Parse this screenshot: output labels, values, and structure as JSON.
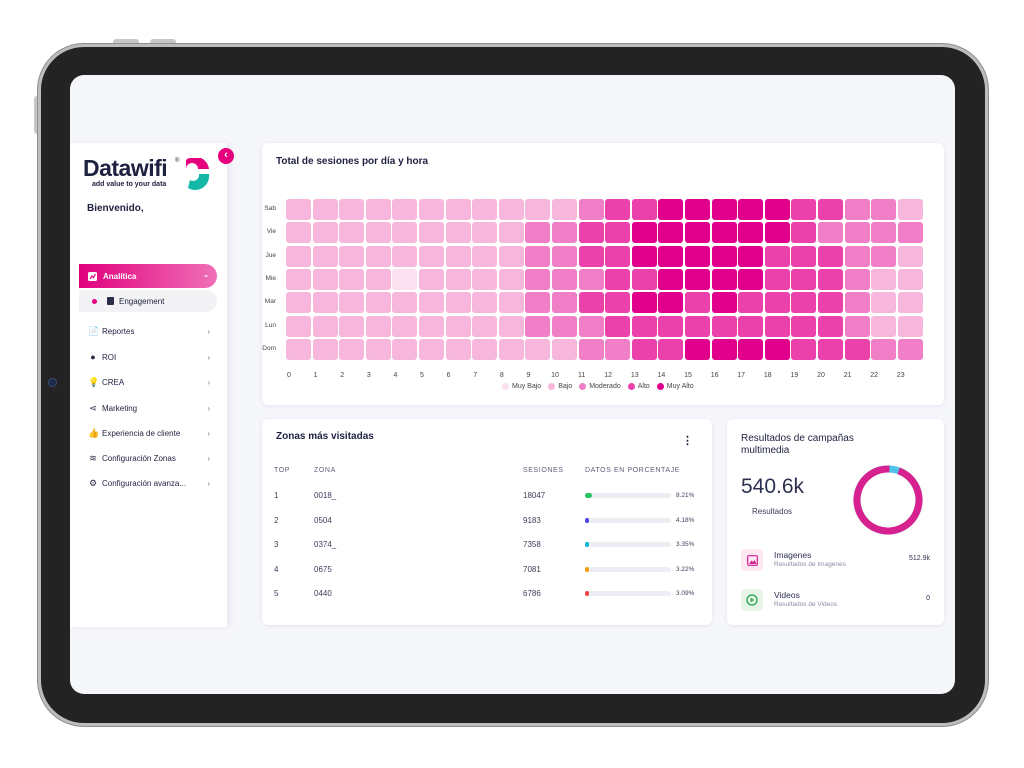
{
  "brand": {
    "name": "Datawifi",
    "reg": "®",
    "tagline": "add value to your data",
    "accent": "#e6007e",
    "teal": "#14b8a6"
  },
  "sidebar": {
    "welcome": "Bienvenido,",
    "collapse_glyph": "‹",
    "active": {
      "label": "Analítica",
      "chevron": "⌄"
    },
    "sub": {
      "label": "Engagement"
    },
    "items": [
      {
        "label": "Reportes",
        "icon": "📄",
        "chevron": "›"
      },
      {
        "label": "ROI",
        "icon": "●",
        "chevron": "›"
      },
      {
        "label": "CREA",
        "icon": "💡",
        "chevron": "›"
      },
      {
        "label": "Marketing",
        "icon": "⋖",
        "chevron": "›"
      },
      {
        "label": "Experiencia de cliente",
        "icon": "👍",
        "chevron": "›"
      },
      {
        "label": "Configuración Zonas",
        "icon": "≋",
        "chevron": "›"
      },
      {
        "label": "Configuración avanza...",
        "icon": "⚙",
        "chevron": "›"
      }
    ]
  },
  "heatmap": {
    "title": "Total de sesiones por día y hora",
    "chart_data": {
      "type": "heatmap",
      "title": "Total de sesiones por día y hora",
      "y_categories": [
        "Sab",
        "Vie",
        "Jue",
        "Mie",
        "Mar",
        "Lun",
        "Dom"
      ],
      "x_categories": [
        "0",
        "1",
        "2",
        "3",
        "4",
        "5",
        "6",
        "7",
        "8",
        "9",
        "10",
        "11",
        "12",
        "13",
        "14",
        "15",
        "16",
        "17",
        "18",
        "19",
        "20",
        "21",
        "22",
        "23"
      ],
      "levels": [
        "Muy Bajo",
        "Bajo",
        "Moderado",
        "Alto",
        "Muy Alto"
      ],
      "level_colors": [
        "#fbe1ef",
        "#f7b7dd",
        "#f07fc7",
        "#ea41ab",
        "#e0008c"
      ],
      "values": [
        [
          1,
          1,
          1,
          1,
          1,
          1,
          1,
          1,
          1,
          1,
          1,
          2,
          3,
          3,
          4,
          4,
          4,
          4,
          4,
          3,
          3,
          2,
          2,
          1
        ],
        [
          1,
          1,
          1,
          1,
          1,
          1,
          1,
          1,
          1,
          2,
          2,
          3,
          3,
          4,
          4,
          4,
          4,
          4,
          4,
          3,
          2,
          2,
          2,
          2
        ],
        [
          1,
          1,
          1,
          1,
          1,
          1,
          1,
          1,
          1,
          2,
          2,
          3,
          3,
          4,
          4,
          4,
          4,
          4,
          3,
          3,
          3,
          2,
          2,
          1
        ],
        [
          1,
          1,
          1,
          1,
          0,
          1,
          1,
          1,
          1,
          2,
          2,
          2,
          3,
          3,
          4,
          4,
          4,
          4,
          3,
          3,
          3,
          2,
          1,
          1
        ],
        [
          1,
          1,
          1,
          1,
          1,
          1,
          1,
          1,
          1,
          2,
          2,
          3,
          3,
          4,
          4,
          3,
          4,
          3,
          3,
          3,
          3,
          2,
          1,
          1
        ],
        [
          1,
          1,
          1,
          1,
          1,
          1,
          1,
          1,
          1,
          2,
          2,
          2,
          3,
          3,
          3,
          3,
          3,
          3,
          3,
          3,
          3,
          2,
          1,
          1
        ],
        [
          1,
          1,
          1,
          1,
          1,
          1,
          1,
          1,
          1,
          1,
          1,
          2,
          2,
          3,
          3,
          4,
          4,
          4,
          4,
          3,
          3,
          3,
          2,
          2
        ]
      ]
    }
  },
  "zones": {
    "title": "Zonas más visitadas",
    "menu_glyph": "⋮",
    "headers": {
      "top": "TOP",
      "zona": "ZONA",
      "sesiones": "SESIONES",
      "datos": "DATOS EN PORCENTAJE"
    },
    "rows": [
      {
        "top": "1",
        "zona": "0018_",
        "sesiones": "18047",
        "pct": "8.21%",
        "fraction": 0.0821,
        "color": "#22c55e"
      },
      {
        "top": "2",
        "zona": "0504",
        "sesiones": "9183",
        "pct": "4.18%",
        "fraction": 0.0418,
        "color": "#4f46e5"
      },
      {
        "top": "3",
        "zona": "0374_",
        "sesiones": "7358",
        "pct": "3.35%",
        "fraction": 0.0335,
        "color": "#06b6d4"
      },
      {
        "top": "4",
        "zona": "0675",
        "sesiones": "7081",
        "pct": "3.22%",
        "fraction": 0.0322,
        "color": "#f59e0b"
      },
      {
        "top": "5",
        "zona": "0440",
        "sesiones": "6786",
        "pct": "3.09%",
        "fraction": 0.0309,
        "color": "#ef4444"
      }
    ]
  },
  "campaigns": {
    "title_line1": "Resultados de campañas",
    "title_line2": "multimedia",
    "total": "540.6k",
    "total_label": "Resultados",
    "donut": {
      "main_fraction": 0.95,
      "main_color": "#d6218f",
      "rest_color": "#4fc3e8"
    },
    "rows": [
      {
        "title": "Imagenes",
        "sub": "Resultados de Imagenes",
        "value": "512.9k",
        "icon": "image-icon",
        "bg": "#fde7f3",
        "color": "#d6218f"
      },
      {
        "title": "Videos",
        "sub": "Resultados de Videos",
        "value": "0",
        "icon": "play-icon",
        "bg": "#e6f6e9",
        "color": "#22a447"
      }
    ]
  }
}
